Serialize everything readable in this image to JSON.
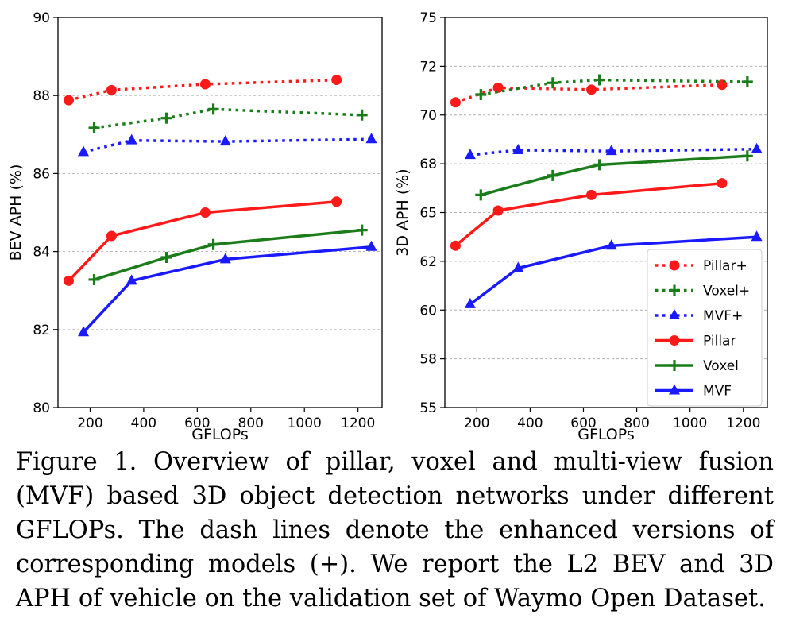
{
  "chart_data": [
    {
      "type": "line",
      "title": "",
      "xlabel": "GFLOPs",
      "ylabel": "BEV APH (%)",
      "xlim": [
        80,
        1290
      ],
      "ylim": [
        80,
        90
      ],
      "xticks": [
        200,
        400,
        600,
        800,
        1000,
        1200
      ],
      "xtick_labels": [
        "200",
        "400",
        "600",
        "800",
        "1000",
        "1200"
      ],
      "yticks": [
        80,
        82,
        84,
        86,
        88,
        90
      ],
      "ytick_labels": [
        "80",
        "82",
        "84",
        "86",
        "88",
        "90"
      ],
      "grid": "horizontal dashed",
      "legend": null,
      "series": [
        {
          "name": "Pillar+",
          "color": "#ff1a1a",
          "style": "dotted",
          "marker": "circle",
          "x": [
            120,
            280,
            630,
            1120
          ],
          "y": [
            87.88,
            88.14,
            88.29,
            88.4
          ]
        },
        {
          "name": "Voxel+",
          "color": "#1a7d1a",
          "style": "dotted",
          "marker": "plus",
          "x": [
            215,
            485,
            660,
            1215
          ],
          "y": [
            87.17,
            87.42,
            87.65,
            87.5
          ]
        },
        {
          "name": "MVF+",
          "color": "#1a1aff",
          "style": "dotted",
          "marker": "triangle",
          "x": [
            175,
            355,
            705,
            1250
          ],
          "y": [
            86.55,
            86.85,
            86.82,
            86.88
          ]
        },
        {
          "name": "Pillar",
          "color": "#ff1a1a",
          "style": "solid",
          "marker": "circle",
          "x": [
            120,
            280,
            630,
            1120
          ],
          "y": [
            83.25,
            84.4,
            85.0,
            85.28
          ]
        },
        {
          "name": "Voxel",
          "color": "#1a7d1a",
          "style": "solid",
          "marker": "plus",
          "x": [
            215,
            485,
            660,
            1215
          ],
          "y": [
            83.28,
            83.85,
            84.18,
            84.55
          ]
        },
        {
          "name": "MVF",
          "color": "#1a1aff",
          "style": "solid",
          "marker": "triangle",
          "x": [
            175,
            355,
            705,
            1250
          ],
          "y": [
            81.93,
            83.25,
            83.8,
            84.12
          ]
        }
      ]
    },
    {
      "type": "line",
      "title": "",
      "xlabel": "GFLOPs",
      "ylabel": "3D APH (%)",
      "xlim": [
        80,
        1290
      ],
      "ylim": [
        55,
        75
      ],
      "xticks": [
        200,
        400,
        600,
        800,
        1000,
        1200
      ],
      "xtick_labels": [
        "200",
        "400",
        "600",
        "800",
        "1000",
        "1200"
      ],
      "yticks": [
        55,
        57.5,
        60,
        62.5,
        65,
        67.5,
        70,
        72.5,
        75
      ],
      "ytick_labels": [
        "55",
        "58",
        "60",
        "62",
        "65",
        "68",
        "70",
        "72",
        "75"
      ],
      "grid": "horizontal dashed",
      "legend": "lower-right",
      "series": [
        {
          "name": "Pillar+",
          "color": "#ff1a1a",
          "style": "dotted",
          "marker": "circle",
          "x": [
            120,
            280,
            630,
            1120
          ],
          "y": [
            70.65,
            71.4,
            71.3,
            71.55
          ]
        },
        {
          "name": "Voxel+",
          "color": "#1a7d1a",
          "style": "dotted",
          "marker": "plus",
          "x": [
            215,
            485,
            660,
            1215
          ],
          "y": [
            71.05,
            71.65,
            71.8,
            71.7
          ]
        },
        {
          "name": "MVF+",
          "color": "#1a1aff",
          "style": "dotted",
          "marker": "triangle",
          "x": [
            175,
            355,
            705,
            1250
          ],
          "y": [
            67.95,
            68.2,
            68.15,
            68.25
          ]
        },
        {
          "name": "Pillar",
          "color": "#ff1a1a",
          "style": "solid",
          "marker": "circle",
          "x": [
            120,
            280,
            630,
            1120
          ],
          "y": [
            63.3,
            65.1,
            65.9,
            66.5
          ]
        },
        {
          "name": "Voxel",
          "color": "#1a7d1a",
          "style": "solid",
          "marker": "plus",
          "x": [
            215,
            485,
            660,
            1215
          ],
          "y": [
            65.9,
            66.9,
            67.45,
            67.9
          ]
        },
        {
          "name": "MVF",
          "color": "#1a1aff",
          "style": "solid",
          "marker": "triangle",
          "x": [
            175,
            355,
            705,
            1250
          ],
          "y": [
            60.3,
            62.15,
            63.3,
            63.75
          ]
        }
      ]
    }
  ],
  "caption": "Figure 1. Overview of pillar, voxel and multi-view fusion (MVF) based 3D object detection networks under different GFLOPs. The dash lines denote the enhanced versions of corresponding models (+). We report the L2 BEV and 3D APH of vehicle on the validation set of Waymo Open Dataset."
}
